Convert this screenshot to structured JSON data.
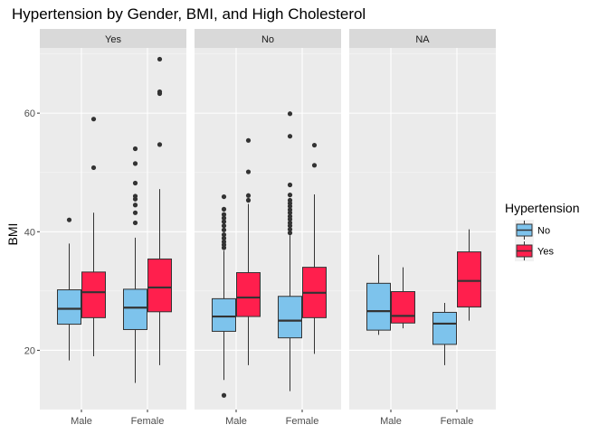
{
  "chart_data": {
    "type": "boxplot",
    "title": "Hypertension by Gender, BMI, and High Cholesterol",
    "ylabel": "BMI",
    "xlabel": "",
    "ylim": [
      10,
      71
    ],
    "yticks": [
      20,
      40,
      60
    ],
    "categories": [
      "Male",
      "Female"
    ],
    "legend": {
      "title": "Hypertension",
      "position": "right",
      "entries": [
        {
          "name": "No",
          "color": "#7dc3ec"
        },
        {
          "name": "Yes",
          "color": "#ff1f4d"
        }
      ]
    },
    "facets": [
      {
        "label": "Yes",
        "groups": [
          {
            "category": "Male",
            "series": "No",
            "whisker_low": 18.3,
            "q1": 24.4,
            "median": 27.0,
            "q3": 30.2,
            "whisker_high": 38.0,
            "outliers": [
              42.0
            ]
          },
          {
            "category": "Male",
            "series": "Yes",
            "whisker_low": 19.0,
            "q1": 25.5,
            "median": 29.8,
            "q3": 33.2,
            "whisker_high": 43.2,
            "outliers": [
              50.8,
              59.0
            ]
          },
          {
            "category": "Female",
            "series": "No",
            "whisker_low": 14.5,
            "q1": 23.5,
            "median": 27.2,
            "q3": 30.3,
            "whisker_high": 39.0,
            "outliers": [
              41.5,
              43.2,
              44.5,
              45.5,
              46.0,
              48.2,
              51.5,
              54.0
            ]
          },
          {
            "category": "Female",
            "series": "Yes",
            "whisker_low": 17.5,
            "q1": 26.5,
            "median": 30.6,
            "q3": 35.4,
            "whisker_high": 47.2,
            "outliers": [
              54.7,
              63.3,
              63.6,
              69.1
            ]
          }
        ]
      },
      {
        "label": "No",
        "groups": [
          {
            "category": "Male",
            "series": "No",
            "whisker_low": 15.0,
            "q1": 23.2,
            "median": 25.7,
            "q3": 28.7,
            "whisker_high": 36.8,
            "outliers": [
              12.4,
              37.3,
              37.8,
              38.3,
              38.9,
              39.5,
              40.3,
              41.0,
              41.7,
              42.3,
              42.9,
              43.8,
              45.9
            ]
          },
          {
            "category": "Male",
            "series": "Yes",
            "whisker_low": 17.5,
            "q1": 25.7,
            "median": 28.9,
            "q3": 33.1,
            "whisker_high": 44.7,
            "outliers": [
              45.3,
              46.1,
              50.1,
              55.4
            ]
          },
          {
            "category": "Female",
            "series": "No",
            "whisker_low": 13.1,
            "q1": 22.1,
            "median": 25.0,
            "q3": 29.1,
            "whisker_high": 39.4,
            "outliers": [
              39.8,
              40.4,
              41.0,
              41.5,
              42.1,
              42.6,
              43.2,
              43.7,
              44.3,
              44.8,
              45.3,
              46.2,
              47.9,
              56.1,
              59.9
            ]
          },
          {
            "category": "Female",
            "series": "Yes",
            "whisker_low": 19.4,
            "q1": 25.5,
            "median": 29.7,
            "q3": 34.0,
            "whisker_high": 46.3,
            "outliers": [
              51.2,
              54.6
            ]
          }
        ]
      },
      {
        "label": "NA",
        "groups": [
          {
            "category": "Male",
            "series": "No",
            "whisker_low": 22.6,
            "q1": 23.4,
            "median": 26.6,
            "q3": 31.3,
            "whisker_high": 36.1,
            "outliers": []
          },
          {
            "category": "Male",
            "series": "Yes",
            "whisker_low": 23.7,
            "q1": 24.6,
            "median": 25.8,
            "q3": 29.9,
            "whisker_high": 34.0,
            "outliers": []
          },
          {
            "category": "Female",
            "series": "No",
            "whisker_low": 17.5,
            "q1": 21.0,
            "median": 24.5,
            "q3": 26.4,
            "whisker_high": 28.0,
            "outliers": []
          },
          {
            "category": "Female",
            "series": "Yes",
            "whisker_low": 25.0,
            "q1": 27.3,
            "median": 31.7,
            "q3": 36.6,
            "whisker_high": 40.4,
            "outliers": []
          }
        ]
      }
    ]
  }
}
